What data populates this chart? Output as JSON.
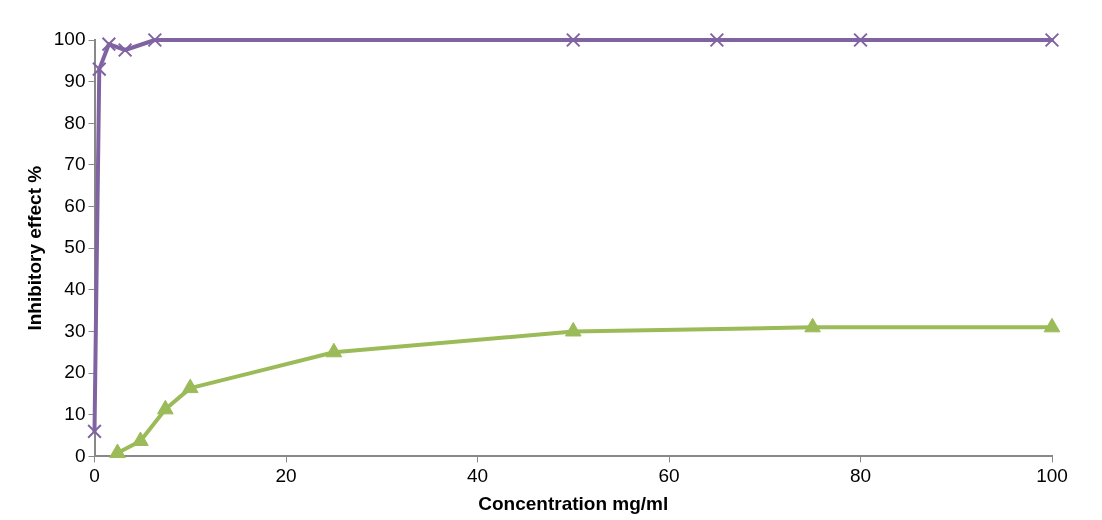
{
  "chart_data": {
    "type": "line",
    "xlabel": "Concentration mg/ml",
    "ylabel": "Inhibitory effect %",
    "xlim": [
      0,
      100
    ],
    "xticks": [
      0,
      20,
      40,
      60,
      80,
      100
    ],
    "ylim": [
      0,
      100
    ],
    "yticks": [
      0,
      10,
      20,
      30,
      40,
      50,
      60,
      70,
      80,
      90,
      100
    ],
    "grid": false,
    "legend": false,
    "series": [
      {
        "color": "#8064a2",
        "marker": "cross",
        "x": [
          0,
          0.5,
          1.5,
          3.2,
          6.3,
          50,
          65,
          80,
          100
        ],
        "values": [
          6,
          93,
          99,
          97.6,
          100,
          100,
          100,
          100,
          100
        ]
      },
      {
        "color": "#9bbb59",
        "marker": "triangle",
        "x": [
          2.4,
          4.8,
          7.4,
          10,
          25,
          50,
          75,
          100
        ],
        "values": [
          0.8,
          3.7,
          11.3,
          16.4,
          25,
          30,
          31,
          31
        ]
      }
    ]
  }
}
